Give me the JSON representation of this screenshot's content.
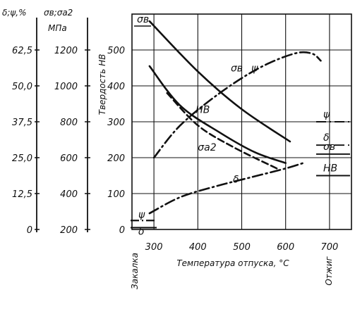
{
  "chart_data": {
    "type": "line",
    "xlabel": "Температура отпуска, °С",
    "ylabel": "Твердость НВ",
    "x_ticks": [
      "300",
      "400",
      "500",
      "600",
      "700"
    ],
    "xlim": [
      250,
      750
    ],
    "ylim": [
      0,
      600
    ],
    "hb_ticks": [
      "0",
      "100",
      "200",
      "300",
      "400",
      "500"
    ],
    "strength_axis": {
      "label_1": "σв;σа2",
      "label_2": "МПа",
      "ticks": [
        "200",
        "400",
        "600",
        "800",
        "1000",
        "1200"
      ]
    },
    "ductility_axis": {
      "label": "δ;ψ,%",
      "ticks": [
        "0",
        "12,5",
        "25,0",
        "37,5",
        "50,0",
        "62,5"
      ]
    },
    "left_end_label": "Закалка",
    "right_end_label": "Отжиг",
    "corner_label": "σв",
    "grid": true,
    "series": [
      {
        "name": "σв",
        "style": "solid",
        "x": [
          290,
          400,
          500,
          610
        ],
        "y": [
          580,
          440,
          335,
          245
        ]
      },
      {
        "name": "НВ",
        "style": "solid",
        "x": [
          290,
          360,
          450,
          530,
          600
        ],
        "y": [
          455,
          345,
          270,
          215,
          185
        ]
      },
      {
        "name": "σа2",
        "style": "dashed",
        "x": [
          330,
          400,
          480,
          580
        ],
        "y": [
          380,
          290,
          230,
          170
        ]
      },
      {
        "name": "ψ",
        "style": "dashdot",
        "x": [
          300,
          360,
          450,
          540,
          620,
          660,
          680
        ],
        "y": [
          200,
          290,
          380,
          450,
          490,
          490,
          470
        ]
      },
      {
        "name": "δ",
        "style": "dashdot",
        "x": [
          290,
          360,
          440,
          520,
          600,
          640
        ],
        "y": [
          45,
          90,
          120,
          145,
          170,
          185
        ]
      }
    ],
    "curve_labels": [
      {
        "text": "σв",
        "x": 475,
        "y": 440
      },
      {
        "text": "ψ",
        "x": 522,
        "y": 440
      },
      {
        "text": "НВ",
        "x": 395,
        "y": 325
      },
      {
        "text": "σа2",
        "x": 400,
        "y": 220
      },
      {
        "text": "δ",
        "x": 480,
        "y": 130
      }
    ],
    "left_markers": [
      {
        "text": "ψ",
        "y": 25
      },
      {
        "text": "δ",
        "y": 5
      }
    ],
    "right_legend": [
      {
        "text": "ψ",
        "style": "dashdot",
        "y": 300
      },
      {
        "text": "δ",
        "style": "dashdot",
        "y": 235
      },
      {
        "text": "σв",
        "style": "solid",
        "y": 210
      },
      {
        "text": "НВ",
        "style": "solid",
        "y": 150
      }
    ]
  }
}
